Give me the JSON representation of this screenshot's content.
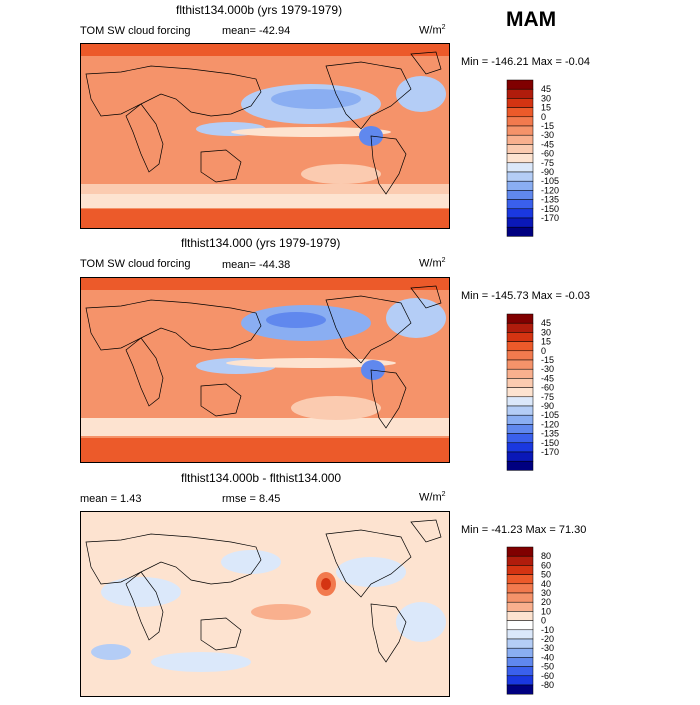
{
  "season": "MAM",
  "chart_data": [
    {
      "type": "heatmap",
      "title": "flthist134.000b (yrs 1979-1979)",
      "variable": "TOM SW cloud forcing",
      "mean_text": "mean= -42.94",
      "units": "W/m",
      "units_sup": "2",
      "minmax_text": "Min = -146.21 Max =  -0.04",
      "colorbar": {
        "levels": [
          "45",
          "30",
          "15",
          "0",
          "-15",
          "-30",
          "-45",
          "-60",
          "-75",
          "-90",
          "-105",
          "-120",
          "-135",
          "-150",
          "-170"
        ],
        "colors": [
          "#800000",
          "#b01c0c",
          "#d43412",
          "#ec5a2a",
          "#f27a4e",
          "#f5936a",
          "#f9b08e",
          "#fbcbb0",
          "#fde3d0",
          "#dbe8fa",
          "#b4cdf6",
          "#8aaef2",
          "#6088ee",
          "#3a60ec",
          "#1a38e0",
          "#0a18b8",
          "#000080"
        ]
      }
    },
    {
      "type": "heatmap",
      "title": "flthist134.000 (yrs 1979-1979)",
      "variable": "TOM SW cloud forcing",
      "mean_text": "mean= -44.38",
      "units": "W/m",
      "units_sup": "2",
      "minmax_text": "Min = -145.73 Max =  -0.03",
      "colorbar": {
        "levels": [
          "45",
          "30",
          "15",
          "0",
          "-15",
          "-30",
          "-45",
          "-60",
          "-75",
          "-90",
          "-105",
          "-120",
          "-135",
          "-150",
          "-170"
        ],
        "colors": [
          "#800000",
          "#b01c0c",
          "#d43412",
          "#ec5a2a",
          "#f27a4e",
          "#f5936a",
          "#f9b08e",
          "#fbcbb0",
          "#fde3d0",
          "#dbe8fa",
          "#b4cdf6",
          "#8aaef2",
          "#6088ee",
          "#3a60ec",
          "#1a38e0",
          "#0a18b8",
          "#000080"
        ]
      }
    },
    {
      "type": "heatmap",
      "title": "flthist134.000b - flthist134.000",
      "mean_text": "mean =    1.43",
      "rmse_text": "rmse =    8.45",
      "units": "W/m",
      "units_sup": "2",
      "minmax_text": "Min = -41.23 Max =  71.30",
      "colorbar": {
        "levels": [
          "80",
          "60",
          "50",
          "40",
          "30",
          "20",
          "10",
          "0",
          "-10",
          "-20",
          "-30",
          "-40",
          "-50",
          "-60",
          "-80"
        ],
        "colors": [
          "#800000",
          "#b01c0c",
          "#d43412",
          "#ec5a2a",
          "#f27a4e",
          "#f5936a",
          "#f9b08e",
          "#fde3d0",
          "#ffffff",
          "#dbe8fa",
          "#b4cdf6",
          "#8aaef2",
          "#6088ee",
          "#3a60ec",
          "#1a38e0",
          "#000080"
        ]
      }
    }
  ]
}
